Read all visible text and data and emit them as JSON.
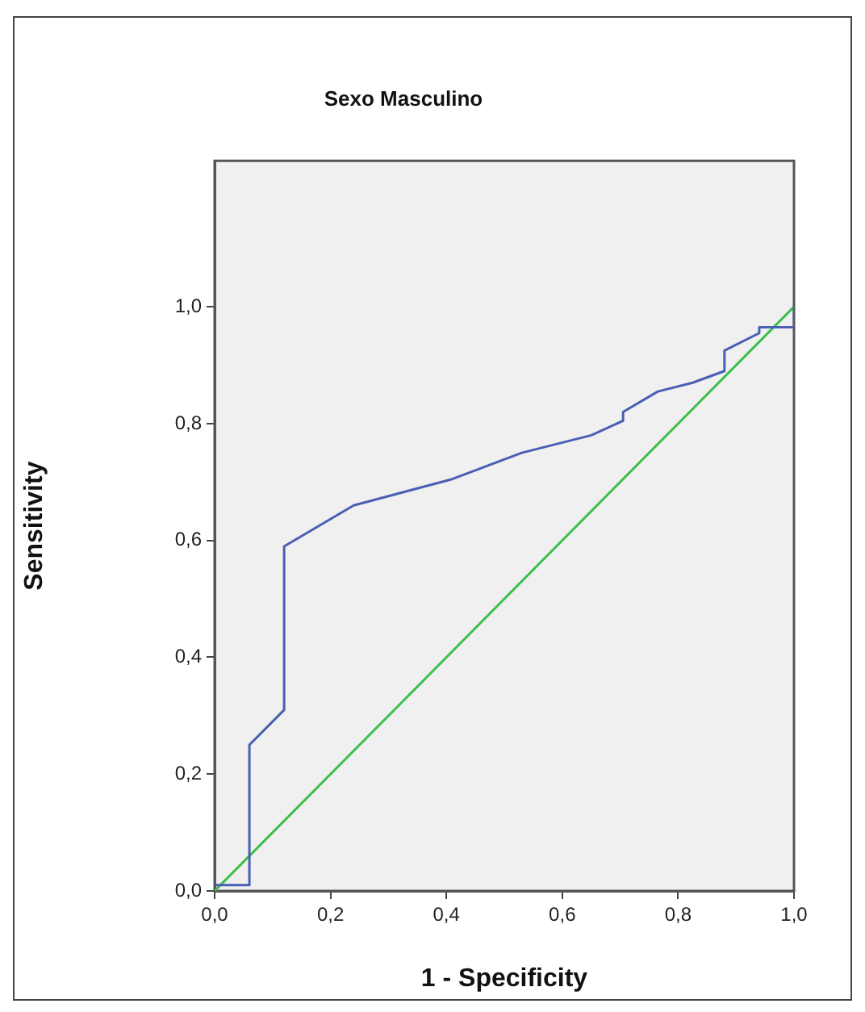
{
  "chart_data": {
    "type": "line",
    "title": "Sexo Masculino",
    "xlabel": "1 - Specificity",
    "ylabel": "Sensitivity",
    "series": [
      {
        "color": "#4a5fb4",
        "x": [
          0,
          0.06,
          0.06,
          0.12,
          0.12,
          0.24,
          0.41,
          0.53,
          0.65,
          0.705,
          0.705,
          0.765,
          0.825,
          0.88,
          0.88,
          0.94,
          0.94,
          1,
          1
        ],
        "values": [
          0.01,
          0.01,
          0.25,
          0.31,
          0.59,
          0.66,
          0.705,
          0.75,
          0.78,
          0.805,
          0.82,
          0.855,
          0.87,
          0.89,
          0.925,
          0.955,
          0.965,
          0.965,
          1
        ]
      },
      {
        "color": "#3cbf4a",
        "x": [
          0,
          1
        ],
        "values": [
          0,
          1
        ]
      }
    ],
    "xlim": [
      0,
      1
    ],
    "ylim": [
      0,
      1.25
    ],
    "xticks": [
      {
        "value": 0,
        "label": "0,0"
      },
      {
        "value": 0.2,
        "label": "0,2"
      },
      {
        "value": 0.4,
        "label": "0,4"
      },
      {
        "value": 0.6,
        "label": "0,6"
      },
      {
        "value": 0.8,
        "label": "0,8"
      },
      {
        "value": 1,
        "label": "1,0"
      }
    ],
    "yticks": [
      {
        "value": 0,
        "label": "0,0"
      },
      {
        "value": 0.2,
        "label": "0,2"
      },
      {
        "value": 0.4,
        "label": "0,4"
      },
      {
        "value": 0.6,
        "label": "0,6"
      },
      {
        "value": 0.8,
        "label": "0,8"
      },
      {
        "value": 1,
        "label": "1,0"
      }
    ],
    "grid": false,
    "legend": false,
    "marker": "none",
    "line_style": "solid"
  }
}
